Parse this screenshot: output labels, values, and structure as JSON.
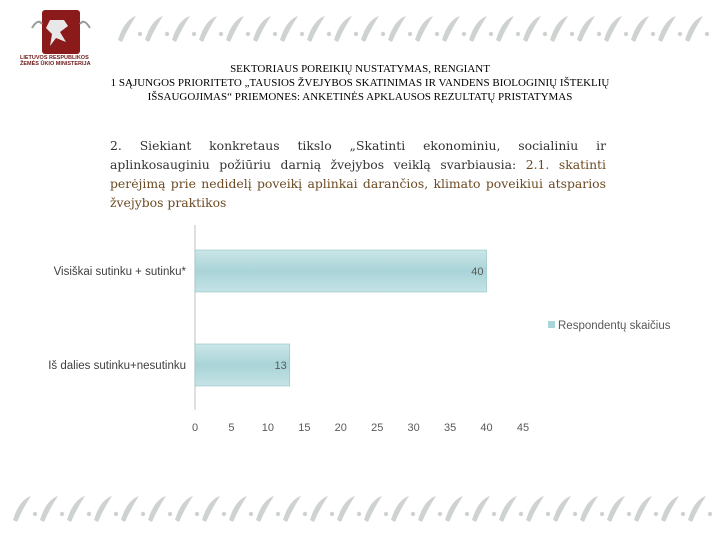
{
  "header": {
    "line1": "SEKTORIAUS POREIKIŲ NUSTATYMAS, RENGIANT",
    "line2": "1 SĄJUNGOS PRIORITETO „TAUSIOS ŽVEJYBOS SKATINIMAS IR VANDENS BIOLOGINIŲ IŠTEKLIŲ",
    "line3": "IŠSAUGOJIMAS“ PRIEMONES: ANKETINĖS APKLAUSOS REZULTATŲ PRISTATYMAS"
  },
  "logo": {
    "text1": "LIETUVOS RESPUBLIKOS",
    "text2": "ŽEMĖS ŪKIO MINISTERIJA"
  },
  "question": {
    "plain": "2. Siekiant konkretaus tikslo „Skatinti ekonominiu, socialiniu ir aplinkosauginiu požiūriu darnią žvejybos veiklą svarbiausia: ",
    "highlight": "2.1. skatinti perėjimą prie nedidelį poveikį aplinkai darančios, klimato poveikiui atsparios žvejybos praktikos"
  },
  "chart_data": {
    "type": "bar",
    "orientation": "horizontal",
    "categories": [
      "Visiškai sutinku + sutinku*",
      "Iš dalies sutinku+nesutinku"
    ],
    "series": [
      {
        "name": "Respondentų skaičius",
        "values": [
          40,
          13
        ]
      }
    ],
    "xlim": [
      0,
      45
    ],
    "xticks": [
      0,
      5,
      10,
      15,
      20,
      25,
      30,
      35,
      40,
      45
    ],
    "grid": false,
    "legend": "right",
    "bar_color": "#a9d4d8"
  }
}
